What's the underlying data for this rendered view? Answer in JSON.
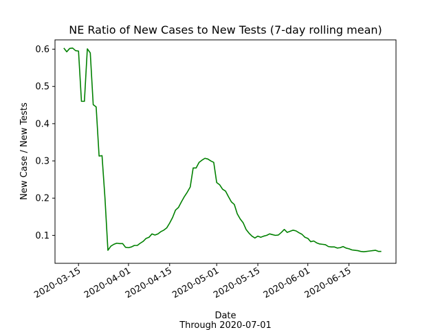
{
  "chart_data": {
    "type": "line",
    "title": "NE Ratio of New Cases to New Tests (7-day rolling mean)",
    "xlabel": "Date",
    "xlabel_sub": "Through 2020-07-01",
    "ylabel": "New Case / New Tests",
    "xlim": [
      "2020-03-07",
      "2020-07-01"
    ],
    "ylim": [
      0.025,
      0.625
    ],
    "yticks": [
      0.1,
      0.2,
      0.3,
      0.4,
      0.5,
      0.6
    ],
    "xticks": [
      "2020-03-15",
      "2020-04-01",
      "2020-04-15",
      "2020-05-01",
      "2020-05-15",
      "2020-06-01",
      "2020-06-15"
    ],
    "grid": false,
    "series": [
      {
        "color": "#008000",
        "points": [
          [
            "2020-03-10",
            0.603
          ],
          [
            "2020-03-11",
            0.593
          ],
          [
            "2020-03-12",
            0.602
          ],
          [
            "2020-03-13",
            0.603
          ],
          [
            "2020-03-14",
            0.596
          ],
          [
            "2020-03-15",
            0.595
          ],
          [
            "2020-03-16",
            0.46
          ],
          [
            "2020-03-17",
            0.46
          ],
          [
            "2020-03-18",
            0.601
          ],
          [
            "2020-03-19",
            0.59
          ],
          [
            "2020-03-20",
            0.451
          ],
          [
            "2020-03-21",
            0.445
          ],
          [
            "2020-03-22",
            0.313
          ],
          [
            "2020-03-23",
            0.314
          ],
          [
            "2020-03-24",
            0.2
          ],
          [
            "2020-03-25",
            0.06
          ],
          [
            "2020-03-26",
            0.071
          ],
          [
            "2020-03-27",
            0.076
          ],
          [
            "2020-03-28",
            0.079
          ],
          [
            "2020-03-29",
            0.078
          ],
          [
            "2020-03-30",
            0.078
          ],
          [
            "2020-03-31",
            0.068
          ],
          [
            "2020-04-01",
            0.067
          ],
          [
            "2020-04-02",
            0.069
          ],
          [
            "2020-04-03",
            0.073
          ],
          [
            "2020-04-04",
            0.073
          ],
          [
            "2020-04-05",
            0.079
          ],
          [
            "2020-04-06",
            0.084
          ],
          [
            "2020-04-07",
            0.092
          ],
          [
            "2020-04-08",
            0.095
          ],
          [
            "2020-04-09",
            0.104
          ],
          [
            "2020-04-10",
            0.101
          ],
          [
            "2020-04-11",
            0.104
          ],
          [
            "2020-04-12",
            0.11
          ],
          [
            "2020-04-13",
            0.114
          ],
          [
            "2020-04-14",
            0.12
          ],
          [
            "2020-04-15",
            0.133
          ],
          [
            "2020-04-16",
            0.148
          ],
          [
            "2020-04-17",
            0.168
          ],
          [
            "2020-04-18",
            0.175
          ],
          [
            "2020-04-19",
            0.19
          ],
          [
            "2020-04-20",
            0.204
          ],
          [
            "2020-04-21",
            0.216
          ],
          [
            "2020-04-22",
            0.23
          ],
          [
            "2020-04-23",
            0.281
          ],
          [
            "2020-04-24",
            0.281
          ],
          [
            "2020-04-25",
            0.296
          ],
          [
            "2020-04-26",
            0.302
          ],
          [
            "2020-04-27",
            0.307
          ],
          [
            "2020-04-28",
            0.305
          ],
          [
            "2020-04-29",
            0.3
          ],
          [
            "2020-04-30",
            0.296
          ],
          [
            "2020-05-01",
            0.242
          ],
          [
            "2020-05-02",
            0.236
          ],
          [
            "2020-05-03",
            0.224
          ],
          [
            "2020-05-04",
            0.219
          ],
          [
            "2020-05-05",
            0.204
          ],
          [
            "2020-05-06",
            0.19
          ],
          [
            "2020-05-07",
            0.183
          ],
          [
            "2020-05-08",
            0.158
          ],
          [
            "2020-05-09",
            0.144
          ],
          [
            "2020-05-10",
            0.134
          ],
          [
            "2020-05-11",
            0.116
          ],
          [
            "2020-05-12",
            0.106
          ],
          [
            "2020-05-13",
            0.098
          ],
          [
            "2020-05-14",
            0.093
          ],
          [
            "2020-05-15",
            0.098
          ],
          [
            "2020-05-16",
            0.095
          ],
          [
            "2020-05-17",
            0.098
          ],
          [
            "2020-05-18",
            0.1
          ],
          [
            "2020-05-19",
            0.104
          ],
          [
            "2020-05-20",
            0.102
          ],
          [
            "2020-05-21",
            0.1
          ],
          [
            "2020-05-22",
            0.101
          ],
          [
            "2020-05-23",
            0.108
          ],
          [
            "2020-05-24",
            0.116
          ],
          [
            "2020-05-25",
            0.108
          ],
          [
            "2020-05-26",
            0.111
          ],
          [
            "2020-05-27",
            0.114
          ],
          [
            "2020-05-28",
            0.112
          ],
          [
            "2020-05-29",
            0.107
          ],
          [
            "2020-05-30",
            0.103
          ],
          [
            "2020-05-31",
            0.095
          ],
          [
            "2020-06-01",
            0.092
          ],
          [
            "2020-06-02",
            0.083
          ],
          [
            "2020-06-03",
            0.085
          ],
          [
            "2020-06-04",
            0.08
          ],
          [
            "2020-06-05",
            0.077
          ],
          [
            "2020-06-06",
            0.076
          ],
          [
            "2020-06-07",
            0.075
          ],
          [
            "2020-06-08",
            0.07
          ],
          [
            "2020-06-09",
            0.069
          ],
          [
            "2020-06-10",
            0.069
          ],
          [
            "2020-06-11",
            0.066
          ],
          [
            "2020-06-12",
            0.067
          ],
          [
            "2020-06-13",
            0.07
          ],
          [
            "2020-06-14",
            0.066
          ],
          [
            "2020-06-15",
            0.064
          ],
          [
            "2020-06-16",
            0.061
          ],
          [
            "2020-06-17",
            0.06
          ],
          [
            "2020-06-18",
            0.059
          ],
          [
            "2020-06-19",
            0.057
          ],
          [
            "2020-06-20",
            0.056
          ],
          [
            "2020-06-21",
            0.057
          ],
          [
            "2020-06-22",
            0.058
          ],
          [
            "2020-06-23",
            0.059
          ],
          [
            "2020-06-24",
            0.06
          ],
          [
            "2020-06-25",
            0.057
          ],
          [
            "2020-06-26",
            0.057
          ]
        ]
      }
    ]
  }
}
